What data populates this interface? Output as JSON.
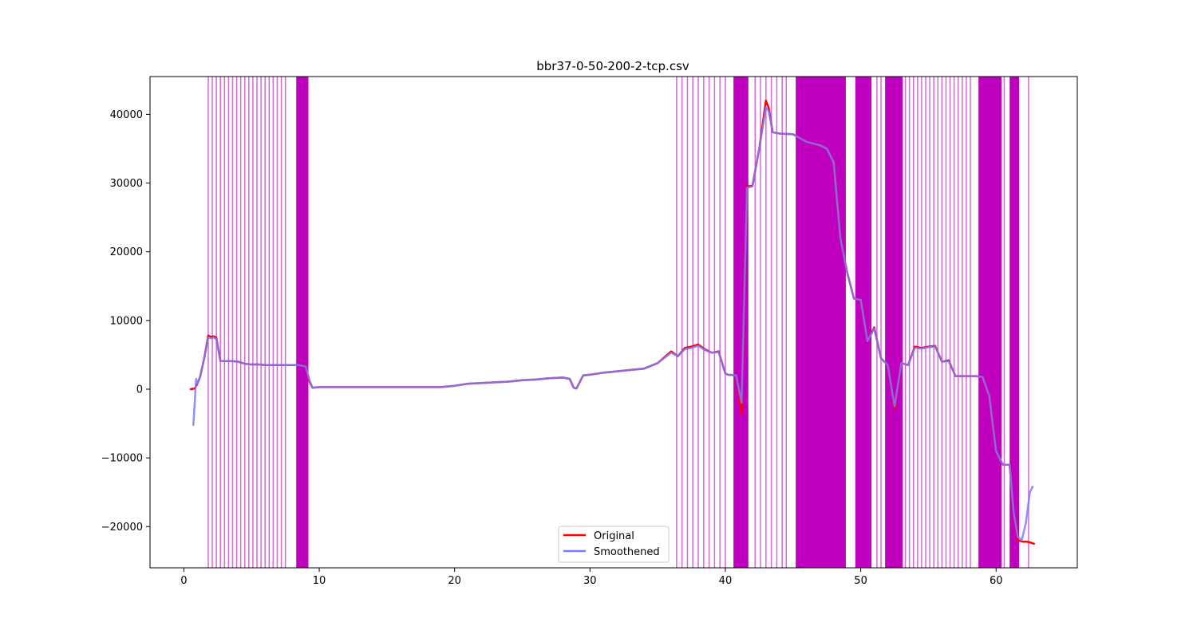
{
  "chart_data": {
    "type": "line",
    "title": "bbr37-0-50-200-2-tcp.csv",
    "xlabel": "",
    "ylabel": "",
    "xlim": [
      -2.5,
      66
    ],
    "ylim": [
      -26000,
      45500
    ],
    "xticks": [
      0,
      10,
      20,
      30,
      40,
      50,
      60
    ],
    "yticks": [
      -20000,
      -10000,
      0,
      10000,
      20000,
      30000,
      40000
    ],
    "xtick_labels": [
      "0",
      "10",
      "20",
      "30",
      "40",
      "50",
      "60"
    ],
    "ytick_labels": [
      "−20000",
      "−10000",
      "0",
      "10000",
      "20000",
      "30000",
      "40000"
    ],
    "grid": false,
    "legend_position": "lower center",
    "colors": {
      "original": "#ff0000",
      "smoothened": "#7b7bff",
      "markers": "#bf00bf"
    },
    "series": [
      {
        "name": "Original",
        "x": [
          0.5,
          0.8,
          1.0,
          1.2,
          1.5,
          1.8,
          2.0,
          2.2,
          2.4,
          2.7,
          3.0,
          3.5,
          4.0,
          4.5,
          5.0,
          5.5,
          6.0,
          7.0,
          8.0,
          8.5,
          9.0,
          9.3,
          9.5,
          10.0,
          12.0,
          14.0,
          16.0,
          18.0,
          19.0,
          20.0,
          21.0,
          22.0,
          23.0,
          24.0,
          25.0,
          26.0,
          27.0,
          28.0,
          28.5,
          28.8,
          29.0,
          29.5,
          30.0,
          31.0,
          32.0,
          33.0,
          34.0,
          35.0,
          36.0,
          36.5,
          37.0,
          37.5,
          38.0,
          38.5,
          39.0,
          39.5,
          40.0,
          40.2,
          40.8,
          41.2,
          41.6,
          42.0,
          42.5,
          43.0,
          43.2,
          43.5,
          44.0,
          45.0,
          46.0,
          47.0,
          47.5,
          48.0,
          48.5,
          49.0,
          49.5,
          50.0,
          50.5,
          51.0,
          51.5,
          52.0,
          52.5,
          53.0,
          53.5,
          54.0,
          54.5,
          55.0,
          55.5,
          56.0,
          56.5,
          57.0,
          57.5,
          58.0,
          58.5,
          59.0,
          59.5,
          60.0,
          60.5,
          61.0,
          61.3,
          61.6,
          62.0,
          62.3,
          62.5,
          62.8
        ],
        "y": [
          0,
          100,
          800,
          1800,
          4500,
          7800,
          7600,
          7700,
          7500,
          4100,
          4100,
          4100,
          4000,
          3700,
          3600,
          3600,
          3500,
          3500,
          3500,
          3500,
          3300,
          1000,
          200,
          300,
          300,
          300,
          300,
          300,
          300,
          500,
          800,
          900,
          1000,
          1100,
          1300,
          1400,
          1600,
          1700,
          1500,
          200,
          100,
          2000,
          2100,
          2400,
          2600,
          2800,
          3000,
          3800,
          5500,
          4800,
          6000,
          6200,
          6500,
          5800,
          5300,
          5500,
          2300,
          2100,
          2000,
          -3500,
          29500,
          29600,
          35000,
          42000,
          41000,
          37400,
          37200,
          37100,
          36000,
          35500,
          35000,
          33000,
          22000,
          17000,
          13200,
          13000,
          7000,
          9000,
          4500,
          3500,
          -2800,
          3800,
          3500,
          6200,
          6000,
          6200,
          6300,
          4000,
          4200,
          1900,
          1900,
          1900,
          1900,
          1800,
          -1000,
          -9000,
          -11000,
          -11000,
          -18000,
          -22000,
          -22200,
          -22200,
          -22300,
          -22500
        ]
      },
      {
        "name": "Smoothened",
        "x": [
          0.7,
          0.8,
          0.9,
          1.0,
          1.2,
          1.5,
          1.8,
          2.0,
          2.2,
          2.4,
          2.7,
          3.0,
          3.5,
          4.0,
          4.5,
          5.0,
          5.5,
          6.0,
          7.0,
          8.0,
          8.5,
          9.0,
          9.3,
          9.5,
          10.0,
          12.0,
          14.0,
          16.0,
          18.0,
          19.0,
          20.0,
          21.0,
          22.0,
          23.0,
          24.0,
          25.0,
          26.0,
          27.0,
          28.0,
          28.5,
          28.8,
          29.0,
          29.5,
          30.0,
          31.0,
          32.0,
          33.0,
          34.0,
          35.0,
          36.0,
          36.5,
          37.0,
          37.5,
          38.0,
          38.5,
          39.0,
          39.5,
          40.0,
          40.2,
          40.8,
          41.2,
          41.6,
          42.0,
          42.5,
          43.0,
          43.2,
          43.5,
          44.0,
          45.0,
          46.0,
          47.0,
          47.5,
          48.0,
          48.5,
          49.0,
          49.5,
          50.0,
          50.5,
          51.0,
          51.5,
          52.0,
          52.5,
          53.0,
          53.5,
          54.0,
          54.5,
          55.0,
          55.5,
          56.0,
          56.5,
          57.0,
          57.5,
          58.0,
          58.5,
          59.0,
          59.5,
          60.0,
          60.5,
          61.0,
          61.3,
          61.6,
          61.9,
          62.2,
          62.5,
          62.7
        ],
        "y": [
          -5200,
          -2000,
          1500,
          800,
          1800,
          4500,
          7500,
          7400,
          7500,
          7300,
          4100,
          4100,
          4100,
          4000,
          3700,
          3600,
          3600,
          3500,
          3500,
          3500,
          3500,
          3300,
          1200,
          200,
          300,
          300,
          300,
          300,
          300,
          300,
          500,
          800,
          900,
          1000,
          1100,
          1300,
          1400,
          1600,
          1700,
          1500,
          200,
          100,
          2000,
          2100,
          2400,
          2600,
          2800,
          3000,
          3800,
          5300,
          4800,
          5800,
          6000,
          6300,
          5700,
          5300,
          5400,
          2300,
          2100,
          2000,
          -2000,
          29300,
          29500,
          35000,
          41000,
          40500,
          37400,
          37200,
          37100,
          36000,
          35500,
          35000,
          33000,
          22000,
          17000,
          13200,
          13000,
          7000,
          8800,
          4500,
          3500,
          -2500,
          3800,
          3500,
          6000,
          5900,
          6100,
          6200,
          4000,
          4100,
          1900,
          1900,
          1900,
          1900,
          1800,
          -1000,
          -9000,
          -11000,
          -11000,
          -18000,
          -21500,
          -22000,
          -19500,
          -15000,
          -14200
        ]
      }
    ],
    "event_lines": {
      "name": "",
      "x": [
        1.8,
        2.1,
        2.4,
        2.7,
        3.0,
        3.3,
        3.6,
        3.9,
        4.2,
        4.5,
        4.8,
        5.1,
        5.4,
        5.7,
        6.0,
        6.3,
        6.6,
        6.9,
        7.2,
        7.5,
        36.4,
        36.8,
        37.2,
        37.6,
        38.0,
        38.4,
        38.8,
        39.2,
        39.6,
        40.0,
        42.2,
        42.6,
        43.0,
        43.4,
        43.8,
        44.2,
        44.5,
        49.9,
        50.0,
        51.2,
        51.5,
        53.3,
        53.6,
        53.9,
        54.2,
        54.5,
        54.8,
        55.1,
        55.4,
        55.7,
        56.0,
        56.3,
        56.6,
        56.9,
        57.2,
        57.5,
        57.8,
        58.1,
        60.6,
        62.4
      ],
      "bands": [
        [
          8.3,
          9.2
        ],
        [
          40.6,
          41.7
        ],
        [
          45.2,
          48.9
        ],
        [
          49.6,
          50.8
        ],
        [
          51.8,
          53.1
        ],
        [
          58.7,
          60.4
        ],
        [
          61.0,
          61.7
        ]
      ]
    }
  },
  "legend": {
    "original": "Original",
    "smoothened": "Smoothened"
  }
}
